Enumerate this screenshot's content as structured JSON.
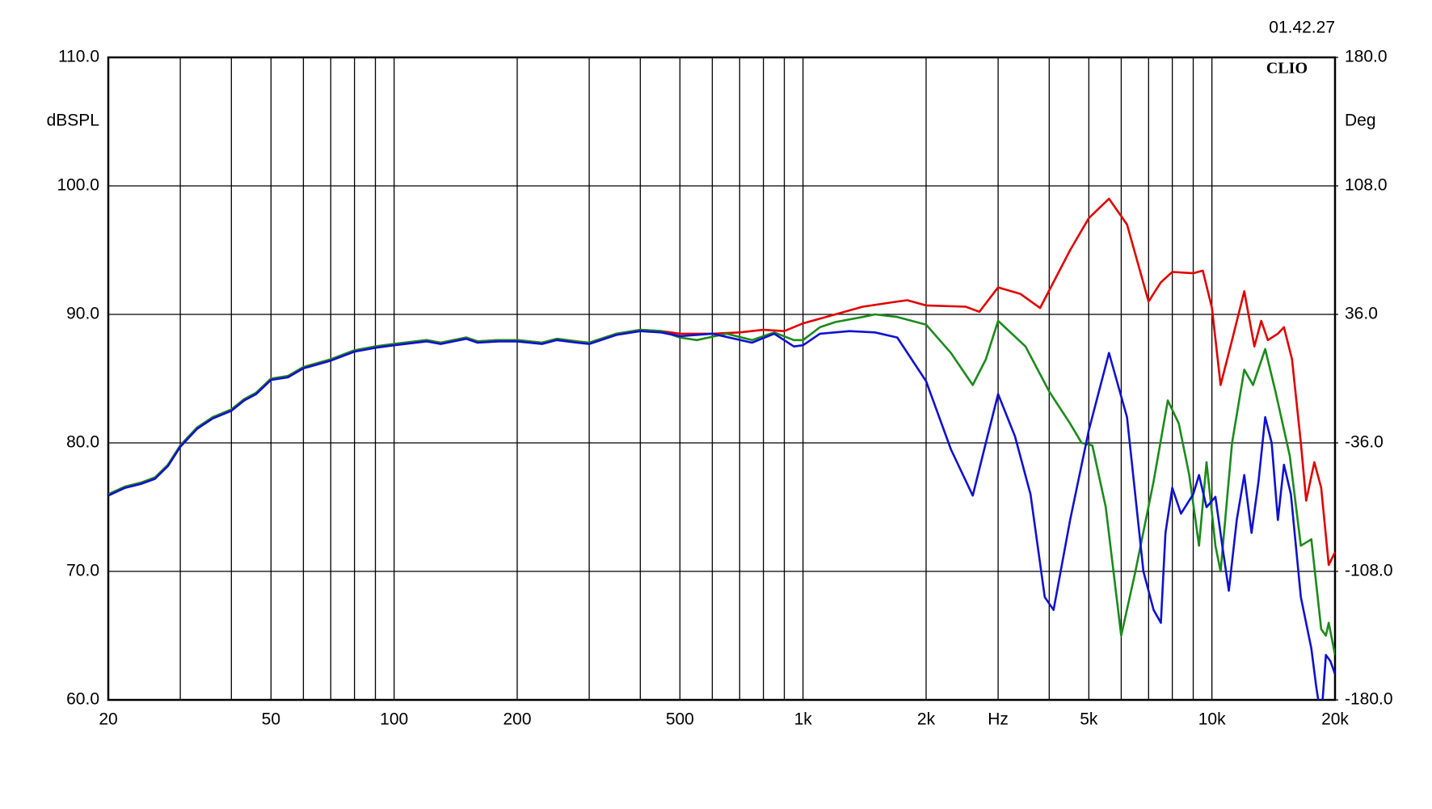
{
  "chart_data": {
    "type": "line",
    "timestamp": "01.42.27",
    "brand": "CLIO",
    "y_label": "dBSPL",
    "y2_label": "Deg",
    "log_x": true,
    "grid": true,
    "xlim": [
      20,
      20000
    ],
    "ylim": [
      60,
      110
    ],
    "y2lim": [
      -180,
      180
    ],
    "xticks": [
      20,
      50,
      100,
      200,
      500,
      {
        "value": 1000,
        "label": "1k"
      },
      {
        "value": 2000,
        "label": "2k"
      },
      {
        "value": 3000,
        "label": "Hz"
      },
      {
        "value": 5000,
        "label": "5k"
      },
      {
        "value": 10000,
        "label": "10k"
      },
      {
        "value": 20000,
        "label": "20k"
      }
    ],
    "xminor": [
      30,
      40,
      60,
      70,
      80,
      90,
      300,
      400,
      600,
      700,
      800,
      900,
      4000,
      6000,
      7000,
      8000,
      9000
    ],
    "yticks": [
      {
        "value": 60,
        "label": "60.0"
      },
      {
        "value": 70,
        "label": "70.0"
      },
      {
        "value": 80,
        "label": "80.0"
      },
      {
        "value": 90,
        "label": "90.0"
      },
      {
        "value": 100,
        "label": "100.0"
      },
      {
        "value": 110,
        "label": "110.0"
      }
    ],
    "y2ticks": [
      {
        "value": -180,
        "label": "-180.0"
      },
      {
        "value": -108,
        "label": "-108.0"
      },
      {
        "value": -36,
        "label": "-36.0"
      },
      {
        "value": 36,
        "label": "36.0"
      },
      {
        "value": 108,
        "label": "108.0"
      },
      {
        "value": 180,
        "label": "180.0"
      }
    ],
    "series": [
      {
        "color": "#e00000",
        "x": [
          20,
          22,
          24,
          26,
          28,
          30,
          33,
          36,
          40,
          43,
          46,
          50,
          55,
          60,
          70,
          80,
          90,
          100,
          120,
          130,
          150,
          160,
          180,
          200,
          230,
          250,
          280,
          300,
          350,
          400,
          450,
          500,
          600,
          700,
          800,
          900,
          1000,
          1200,
          1400,
          1700,
          1800,
          2000,
          2500,
          2700,
          3000,
          3400,
          3800,
          4500,
          5000,
          5600,
          6200,
          7000,
          7500,
          8000,
          9000,
          9500,
          10000,
          10500,
          11200,
          12000,
          12700,
          13200,
          13700,
          14500,
          15000,
          15700,
          16500,
          17000,
          17800,
          18500,
          19300,
          20000
        ],
        "values": [
          76.0,
          76.6,
          76.9,
          77.3,
          78.3,
          79.8,
          81.2,
          82.0,
          82.6,
          83.4,
          83.9,
          85.0,
          85.2,
          85.9,
          86.5,
          87.2,
          87.5,
          87.7,
          88.0,
          87.8,
          88.2,
          87.9,
          88.0,
          88.0,
          87.8,
          88.1,
          87.9,
          87.8,
          88.5,
          88.8,
          88.7,
          88.5,
          88.5,
          88.6,
          88.8,
          88.7,
          89.3,
          90.0,
          90.6,
          91.0,
          91.1,
          90.7,
          90.6,
          90.2,
          92.1,
          91.6,
          90.5,
          95.0,
          97.5,
          99.0,
          97.0,
          91.0,
          92.5,
          93.3,
          93.2,
          93.4,
          90.5,
          84.5,
          88.0,
          91.8,
          87.5,
          89.5,
          88.0,
          88.5,
          89.0,
          86.5,
          80.0,
          75.5,
          78.5,
          76.5,
          70.5,
          71.5
        ]
      },
      {
        "color": "#1a8a1a",
        "x": [
          20,
          22,
          24,
          26,
          28,
          30,
          33,
          36,
          40,
          43,
          46,
          50,
          55,
          60,
          70,
          80,
          90,
          100,
          120,
          130,
          150,
          160,
          180,
          200,
          230,
          250,
          280,
          300,
          350,
          400,
          450,
          500,
          550,
          650,
          750,
          850,
          950,
          1000,
          1100,
          1200,
          1400,
          1500,
          1700,
          2000,
          2300,
          2600,
          2800,
          3000,
          3500,
          4000,
          4500,
          4800,
          5100,
          5500,
          6000,
          6500,
          7200,
          7800,
          8300,
          8800,
          9300,
          9700,
          10200,
          10500,
          11200,
          12000,
          12600,
          13500,
          14300,
          15500,
          16500,
          17500,
          18500,
          19000,
          19300,
          20000
        ],
        "values": [
          76.0,
          76.6,
          76.9,
          77.3,
          78.3,
          79.8,
          81.2,
          82.0,
          82.6,
          83.4,
          83.9,
          85.0,
          85.2,
          85.9,
          86.5,
          87.2,
          87.5,
          87.7,
          88.0,
          87.8,
          88.2,
          87.9,
          88.0,
          88.0,
          87.8,
          88.1,
          87.9,
          87.8,
          88.5,
          88.8,
          88.7,
          88.2,
          88.0,
          88.5,
          88.0,
          88.6,
          88.0,
          88.0,
          89.0,
          89.4,
          89.8,
          90.0,
          89.8,
          89.2,
          87.0,
          84.5,
          86.5,
          89.5,
          87.5,
          84.0,
          81.5,
          80.0,
          79.8,
          75.0,
          65.0,
          70.0,
          77.0,
          83.3,
          81.5,
          77.5,
          72.0,
          78.5,
          72.0,
          70.0,
          80.0,
          85.7,
          84.5,
          87.3,
          84.0,
          79.0,
          72.0,
          72.5,
          65.5,
          65.0,
          66.0,
          63.5
        ]
      },
      {
        "color": "#1010d0",
        "x": [
          20,
          22,
          24,
          26,
          28,
          30,
          33,
          36,
          40,
          43,
          46,
          50,
          55,
          60,
          70,
          80,
          90,
          100,
          120,
          130,
          150,
          160,
          180,
          200,
          230,
          250,
          280,
          300,
          350,
          400,
          450,
          500,
          600,
          750,
          850,
          950,
          1000,
          1100,
          1300,
          1500,
          1700,
          2000,
          2300,
          2600,
          2800,
          3000,
          3300,
          3600,
          3900,
          4100,
          4500,
          5000,
          5600,
          6200,
          6800,
          7200,
          7500,
          7700,
          8000,
          8400,
          9000,
          9300,
          9700,
          10200,
          10600,
          11000,
          11500,
          12000,
          12500,
          13000,
          13500,
          14000,
          14500,
          15000,
          15600,
          16500,
          17500,
          18000,
          18500,
          19000,
          19500,
          20000
        ],
        "values": [
          75.9,
          76.5,
          76.8,
          77.2,
          78.2,
          79.7,
          81.1,
          81.9,
          82.5,
          83.3,
          83.8,
          84.9,
          85.1,
          85.8,
          86.4,
          87.1,
          87.4,
          87.6,
          87.9,
          87.7,
          88.1,
          87.8,
          87.9,
          87.9,
          87.7,
          88.0,
          87.8,
          87.7,
          88.4,
          88.7,
          88.6,
          88.3,
          88.5,
          87.8,
          88.5,
          87.5,
          87.6,
          88.5,
          88.7,
          88.6,
          88.2,
          84.8,
          79.5,
          75.9,
          80.0,
          83.8,
          80.5,
          76.0,
          68.0,
          67.0,
          74.0,
          81.0,
          87.0,
          82.0,
          70.0,
          67.0,
          66.0,
          73.0,
          76.5,
          74.5,
          76.0,
          77.5,
          75.0,
          75.8,
          72.0,
          68.5,
          74.0,
          77.5,
          73.0,
          77.0,
          82.0,
          80.0,
          74.0,
          78.3,
          76.0,
          68.0,
          64.0,
          61.0,
          58.5,
          63.5,
          63.0,
          62.0
        ]
      }
    ]
  }
}
